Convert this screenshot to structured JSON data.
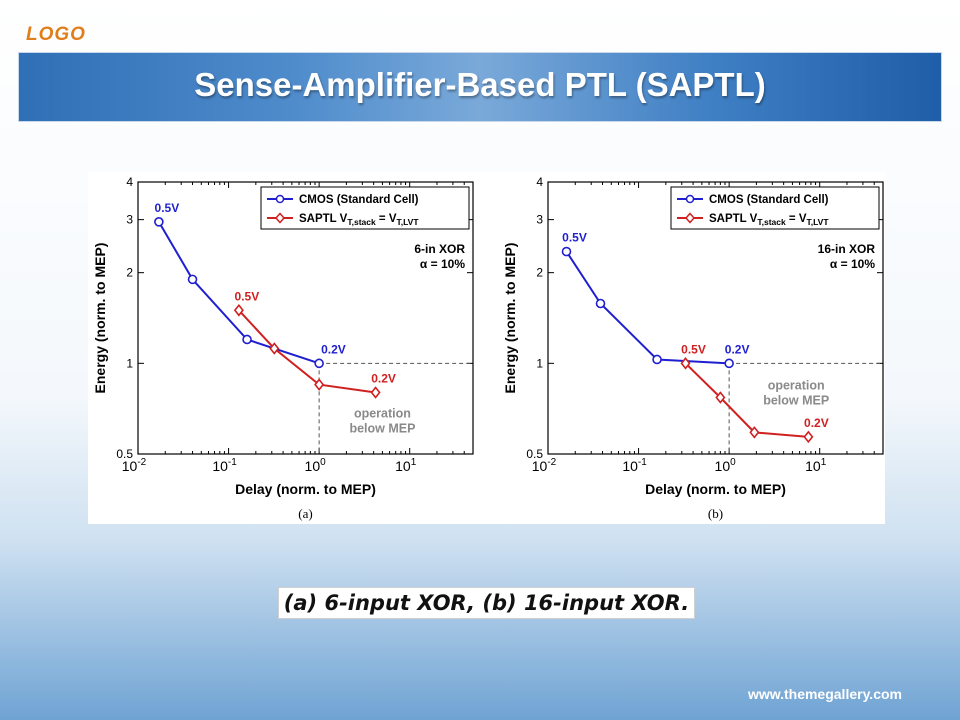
{
  "header": {
    "logo": "LOGO",
    "title": "Sense-Amplifier-Based PTL (SAPTL)"
  },
  "footer": {
    "website": "www.themegallery.com"
  },
  "caption": "(a) 6-input XOR, (b) 16-input XOR.",
  "colors": {
    "cmos": "#1f1fd0",
    "saptl": "#d02020",
    "title_bar": "#3f7fc4",
    "logo": "#e07e1a"
  },
  "chart_data": [
    {
      "type": "line",
      "panel_label": "(a)",
      "xlabel": "Delay (norm. to MEP)",
      "ylabel": "Energy (norm. to MEP)",
      "x_scale": "log",
      "y_scale": "log",
      "xlim": [
        0.01,
        50
      ],
      "ylim": [
        0.5,
        4
      ],
      "x_ticks": [
        {
          "value": 0.01,
          "base": "10",
          "exp": "-2"
        },
        {
          "value": 0.1,
          "base": "10",
          "exp": "-1"
        },
        {
          "value": 1,
          "base": "10",
          "exp": "0"
        },
        {
          "value": 10,
          "base": "10",
          "exp": "1"
        }
      ],
      "y_ticks": [
        {
          "value": 0.5,
          "label": "0.5"
        },
        {
          "value": 1,
          "label": "1"
        },
        {
          "value": 2,
          "label": "2"
        },
        {
          "value": 3,
          "label": "3"
        },
        {
          "value": 4,
          "label": "4"
        }
      ],
      "legend": {
        "position": "top-right",
        "entries": [
          {
            "series": 0,
            "text": "CMOS (Standard Cell)"
          },
          {
            "series": 1,
            "text": "SAPTL V",
            "sub1": "T,stack",
            "mid": " = V",
            "sub2": "T,LVT"
          }
        ]
      },
      "note_lines": [
        "6-in XOR",
        "α = 10%"
      ],
      "series": [
        {
          "marker": "circle",
          "color": "#1f1fd0",
          "x": [
            0.017,
            0.04,
            0.16,
            1.0
          ],
          "y": [
            2.95,
            1.9,
            1.2,
            1.0
          ]
        },
        {
          "marker": "diamond",
          "color": "#d02020",
          "x": [
            0.13,
            0.32,
            1.0,
            4.2
          ],
          "y": [
            1.5,
            1.12,
            0.85,
            0.8
          ]
        }
      ],
      "mep_lines": {
        "x": 1,
        "y": 1
      },
      "annotations": [
        {
          "text": "0.5V",
          "x": 0.017,
          "y": 2.95,
          "color": "#1f1fd0",
          "anchor": "above"
        },
        {
          "text": "0.2V",
          "x": 1.0,
          "y": 1.0,
          "color": "#1f1fd0",
          "anchor": "above-right"
        },
        {
          "text": "0.5V",
          "x": 0.13,
          "y": 1.5,
          "color": "#d02020",
          "anchor": "above"
        },
        {
          "text": "0.2V",
          "x": 4.2,
          "y": 0.8,
          "color": "#d02020",
          "anchor": "above"
        }
      ],
      "region_label": {
        "lines": [
          "operation",
          "below MEP"
        ],
        "x": 5.0,
        "y": 0.66
      }
    },
    {
      "type": "line",
      "panel_label": "(b)",
      "xlabel": "Delay (norm. to MEP)",
      "ylabel": "Energy (norm. to MEP)",
      "x_scale": "log",
      "y_scale": "log",
      "xlim": [
        0.01,
        50
      ],
      "ylim": [
        0.5,
        4
      ],
      "x_ticks": [
        {
          "value": 0.01,
          "base": "10",
          "exp": "-2"
        },
        {
          "value": 0.1,
          "base": "10",
          "exp": "-1"
        },
        {
          "value": 1,
          "base": "10",
          "exp": "0"
        },
        {
          "value": 10,
          "base": "10",
          "exp": "1"
        }
      ],
      "y_ticks": [
        {
          "value": 0.5,
          "label": "0.5"
        },
        {
          "value": 1,
          "label": "1"
        },
        {
          "value": 2,
          "label": "2"
        },
        {
          "value": 3,
          "label": "3"
        },
        {
          "value": 4,
          "label": "4"
        }
      ],
      "legend": {
        "position": "top-right",
        "entries": [
          {
            "series": 0,
            "text": "CMOS (Standard Cell)"
          },
          {
            "series": 1,
            "text": "SAPTL V",
            "sub1": "T,stack",
            "mid": " = V",
            "sub2": "T,LVT"
          }
        ]
      },
      "note_lines": [
        "16-in XOR",
        "α = 10%"
      ],
      "series": [
        {
          "marker": "circle",
          "color": "#1f1fd0",
          "x": [
            0.016,
            0.038,
            0.16,
            1.0
          ],
          "y": [
            2.35,
            1.58,
            1.03,
            1.0
          ]
        },
        {
          "marker": "diamond",
          "color": "#d02020",
          "x": [
            0.33,
            0.8,
            1.9,
            7.5
          ],
          "y": [
            1.0,
            0.77,
            0.59,
            0.57
          ]
        }
      ],
      "mep_lines": {
        "x": 1,
        "y": 1
      },
      "annotations": [
        {
          "text": "0.5V",
          "x": 0.016,
          "y": 2.35,
          "color": "#1f1fd0",
          "anchor": "above"
        },
        {
          "text": "0.2V",
          "x": 1.0,
          "y": 1.0,
          "color": "#1f1fd0",
          "anchor": "above"
        },
        {
          "text": "0.5V",
          "x": 0.33,
          "y": 1.0,
          "color": "#d02020",
          "anchor": "above"
        },
        {
          "text": "0.2V",
          "x": 7.5,
          "y": 0.57,
          "color": "#d02020",
          "anchor": "above"
        }
      ],
      "region_label": {
        "lines": [
          "operation",
          "below MEP"
        ],
        "x": 5.5,
        "y": 0.82
      }
    }
  ]
}
